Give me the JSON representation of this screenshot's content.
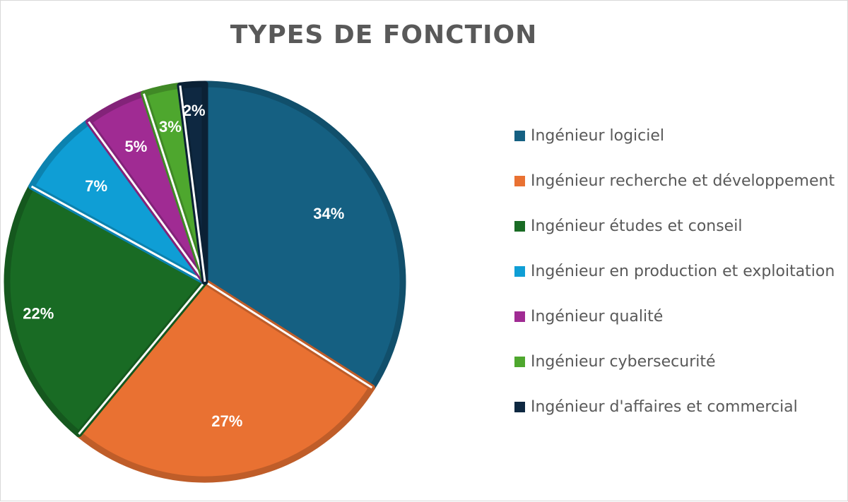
{
  "chart_data": {
    "type": "pie",
    "title": "TYPES DE FONCTION",
    "categories": [
      "Ingénieur logiciel",
      "Ingénieur recherche et développement",
      "Ingénieur études et conseil",
      "Ingénieur en production et exploitation",
      "Ingénieur qualité",
      "Ingénieur cybersecurité",
      "Ingénieur d'affaires et commercial"
    ],
    "values": [
      34,
      27,
      22,
      7,
      5,
      3,
      2
    ],
    "data_labels": [
      "34%",
      "27%",
      "22%",
      "7%",
      "5%",
      "3%",
      "2%"
    ],
    "colors": [
      "#156082",
      "#e97132",
      "#196b24",
      "#0f9ed5",
      "#a02b93",
      "#4ea72e",
      "#0e2841"
    ],
    "start_angle": "12 o'clock",
    "direction": "clockwise",
    "legend_position": "right"
  }
}
